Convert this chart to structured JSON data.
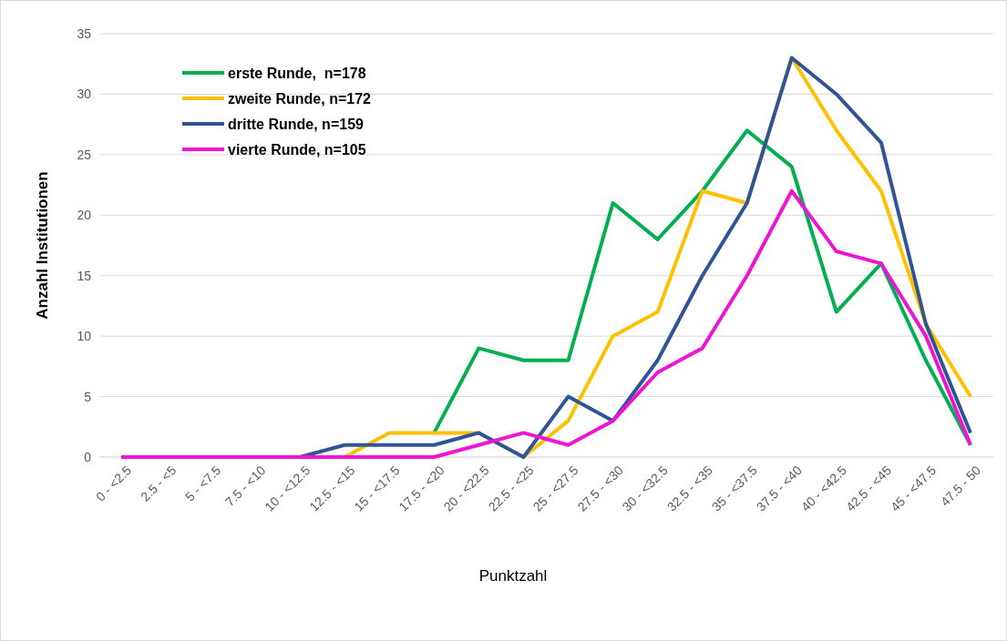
{
  "chart_data": {
    "type": "line",
    "xlabel": "Punktzahl",
    "ylabel": "Anzahl Institutionen",
    "categories": [
      "0 - <2.5",
      "2.5 - <5",
      "5 - <7.5",
      "7.5 - <10",
      "10 - <12.5",
      "12.5 - <15",
      "15 - <17.5",
      "17.5 - <20",
      "20 - <22.5",
      "22.5 - <25",
      "25 - <27.5",
      "27.5 - <30",
      "30 - <32.5",
      "32.5 - <35",
      "35 - <37.5",
      "37.5 - <40",
      "40 - <42.5",
      "42.5 - <45",
      "45 - <47.5",
      "47.5 - 50"
    ],
    "series": [
      {
        "name": "erste Runde,  n=178",
        "color": "#00b050",
        "values": [
          null,
          null,
          null,
          null,
          null,
          null,
          null,
          2,
          9,
          8,
          8,
          21,
          18,
          22,
          27,
          24,
          12,
          16,
          8,
          1
        ]
      },
      {
        "name": "zweite Runde, n=172",
        "color": "#ffc000",
        "values": [
          null,
          null,
          null,
          null,
          null,
          0,
          2,
          2,
          2,
          0,
          3,
          10,
          12,
          22,
          21,
          33,
          27,
          22,
          11,
          5
        ]
      },
      {
        "name": "dritte Runde, n=159",
        "color": "#2f5597",
        "values": [
          null,
          null,
          null,
          null,
          0,
          1,
          1,
          1,
          2,
          0,
          5,
          3,
          8,
          15,
          21,
          33,
          30,
          26,
          11,
          2
        ]
      },
      {
        "name": "vierte Runde, n=105",
        "color": "#ee14d4",
        "values": [
          0,
          0,
          0,
          0,
          0,
          0,
          0,
          0,
          1,
          2,
          1,
          3,
          7,
          9,
          15,
          22,
          17,
          16,
          10,
          1
        ]
      }
    ],
    "ylim": [
      0,
      35
    ],
    "yticks": [
      0,
      5,
      10,
      15,
      20,
      25,
      30,
      35
    ],
    "grid": "y",
    "legend": "top left",
    "marker": "none",
    "line_style": "solid"
  }
}
